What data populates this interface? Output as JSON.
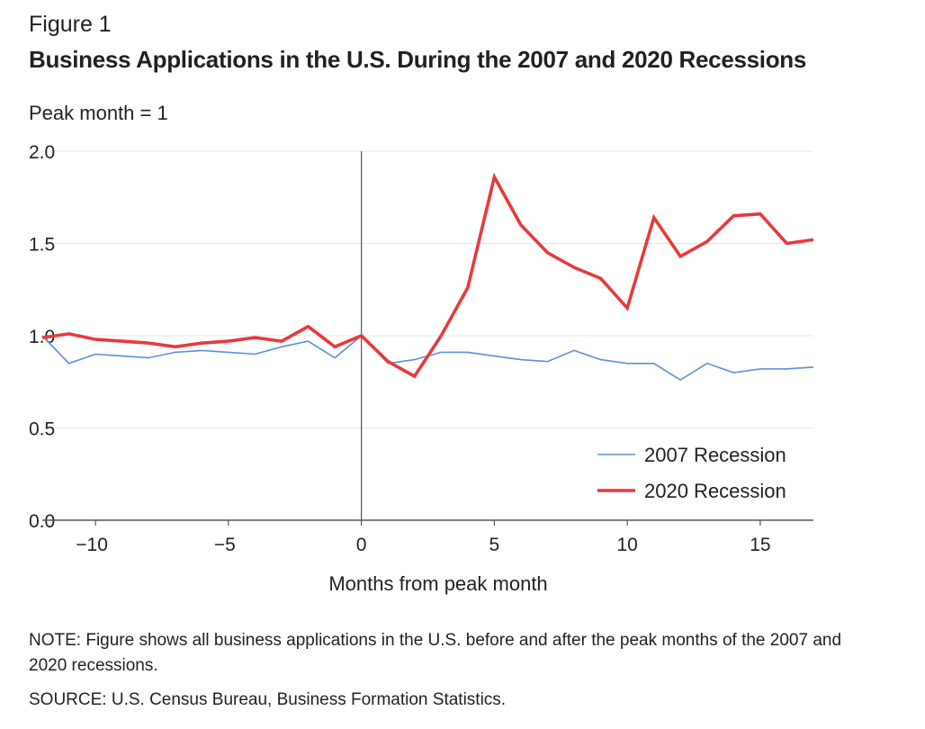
{
  "figure_label": "Figure 1",
  "title": "Business Applications in the U.S. During the 2007 and 2020 Recessions",
  "y_unit_label": "Peak month = 1",
  "note": "NOTE: Figure shows all business applications in the U.S. before and after the peak months of the 2007 and 2020 recessions.",
  "source": "SOURCE: U.S. Census Bureau, Business Formation Statistics.",
  "chart_data": {
    "type": "line",
    "xlabel": "Months from peak month",
    "ylabel": "Peak month = 1",
    "xlim": [
      -12,
      17
    ],
    "ylim": [
      0,
      2.0
    ],
    "x_ticks": [
      -10,
      -5,
      0,
      5,
      10,
      15
    ],
    "x_tick_labels": [
      "−10",
      "−5",
      "0",
      "5",
      "10",
      "15"
    ],
    "y_ticks": [
      0,
      0.5,
      1.0,
      1.5,
      2.0
    ],
    "y_tick_labels": [
      "0.0",
      "0.5",
      "1.0",
      "1.5",
      "2.0"
    ],
    "grid": "horizontal",
    "legend_position": "bottom-right",
    "reference_line_x": 0,
    "x": [
      -12,
      -11,
      -10,
      -9,
      -8,
      -7,
      -6,
      -5,
      -4,
      -3,
      -2,
      -1,
      0,
      1,
      2,
      3,
      4,
      5,
      6,
      7,
      8,
      9,
      10,
      11,
      12,
      13,
      14,
      15,
      16,
      17
    ],
    "series": [
      {
        "name": "2007 Recession",
        "color": "#5b8fd9",
        "values": [
          1.0,
          0.85,
          0.9,
          0.89,
          0.88,
          0.91,
          0.92,
          0.91,
          0.9,
          0.94,
          0.97,
          0.88,
          1.0,
          0.85,
          0.87,
          0.91,
          0.91,
          0.89,
          0.87,
          0.86,
          0.92,
          0.87,
          0.85,
          0.85,
          0.76,
          0.85,
          0.8,
          0.82,
          0.82,
          0.83
        ]
      },
      {
        "name": "2020 Recession",
        "color": "#e8393a",
        "values": [
          0.99,
          1.01,
          0.98,
          0.97,
          0.96,
          0.94,
          0.96,
          0.97,
          0.99,
          0.97,
          1.05,
          0.94,
          1.0,
          0.86,
          0.78,
          1.0,
          1.26,
          1.86,
          1.6,
          1.45,
          1.37,
          1.31,
          1.15,
          1.64,
          1.43,
          1.51,
          1.65,
          1.66,
          1.5,
          1.52
        ]
      }
    ]
  }
}
